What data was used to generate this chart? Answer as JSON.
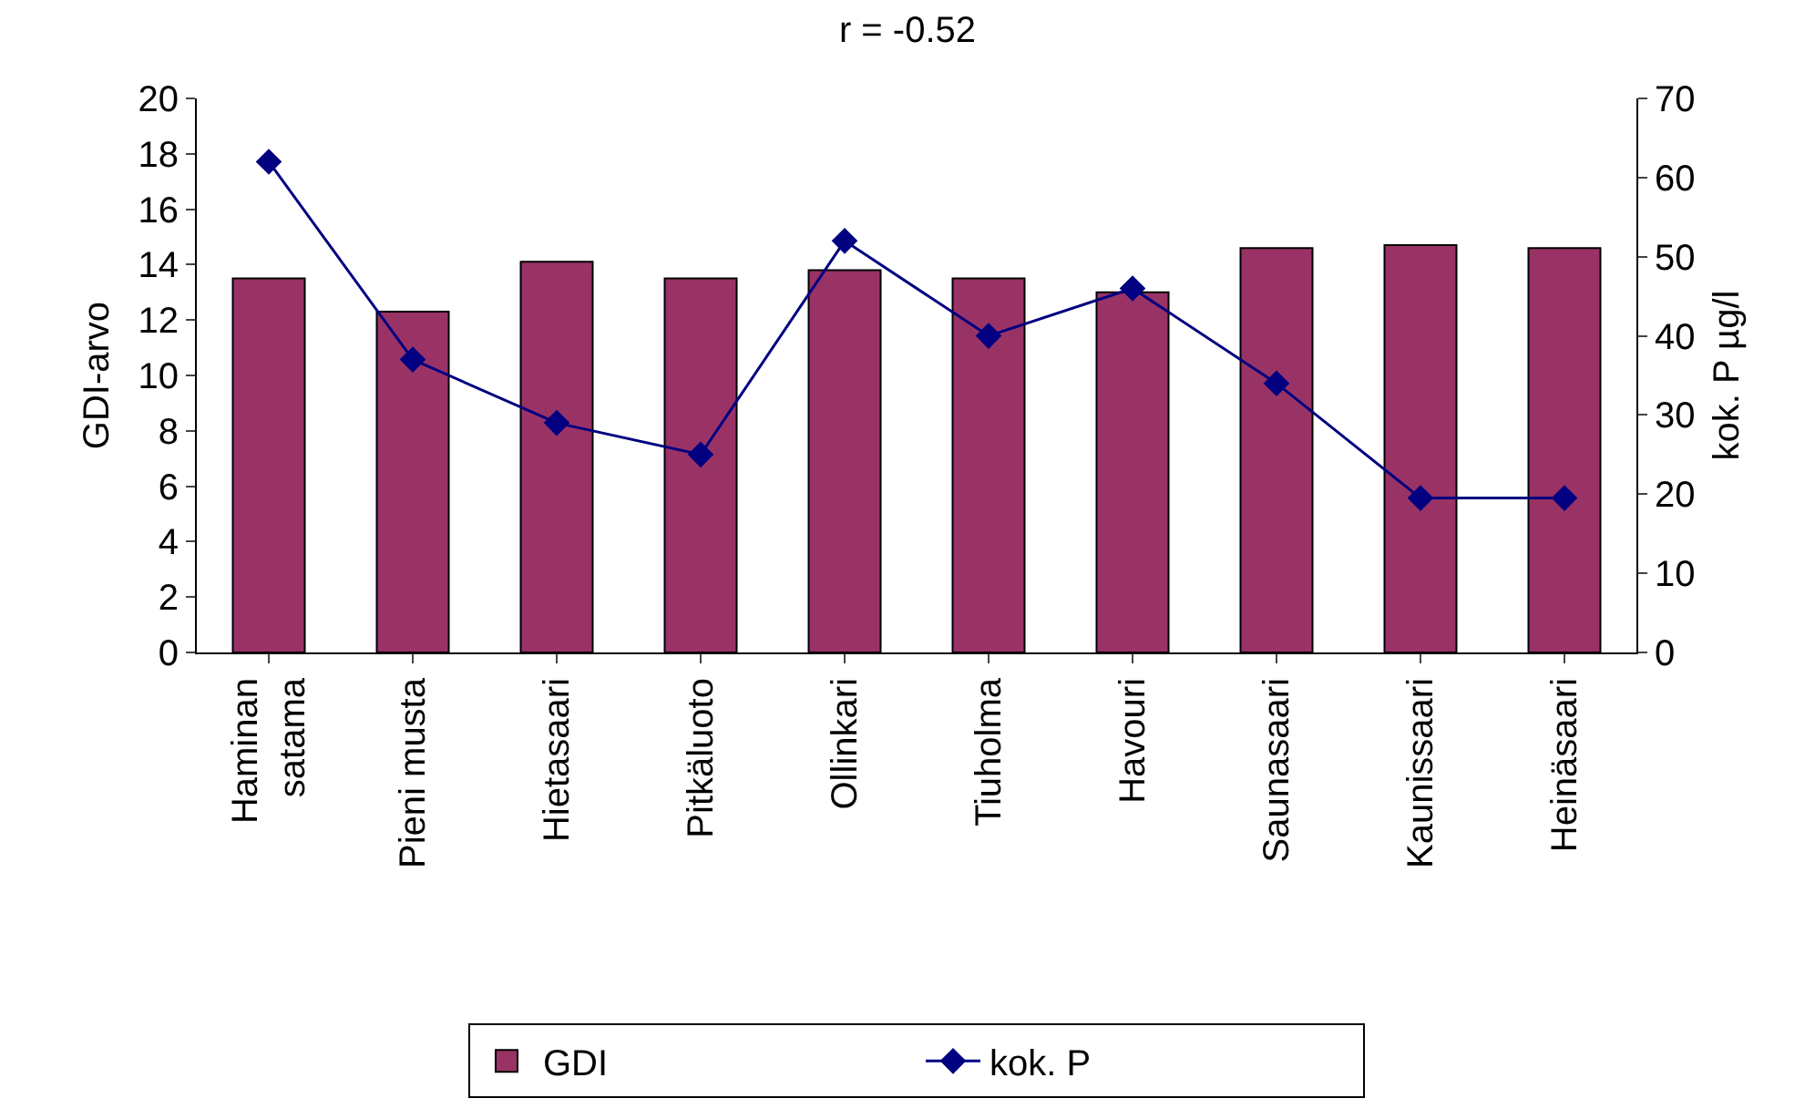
{
  "chart_data": {
    "type": "bar",
    "title": "r = -0.52",
    "ylabel": "GDI-arvo",
    "y2label": "kok. P µg/l",
    "categories": [
      "Haminan\nsatama",
      "Pieni musta",
      "Hietasaari",
      "Pitkäluoto",
      "Ollinkari",
      "Tiuholma",
      "Havouri",
      "Saunasaari",
      "Kaunissaari",
      "Heinäsaari"
    ],
    "series": [
      {
        "name": "GDI",
        "color": "#993366",
        "values": [
          13.5,
          12.3,
          14.1,
          13.5,
          13.8,
          13.5,
          13.0,
          14.6,
          14.7,
          14.6
        ]
      },
      {
        "name": "kok. P",
        "type": "line",
        "axis": "y2",
        "color": "#000080",
        "marker": "diamond",
        "values": [
          62,
          37,
          29,
          25,
          52,
          40,
          46,
          34,
          19.5,
          19.5
        ]
      }
    ],
    "ylim": [
      0,
      20
    ],
    "yticks": [
      0,
      2,
      4,
      6,
      8,
      10,
      12,
      14,
      16,
      18,
      20
    ],
    "y2lim": [
      0,
      70
    ],
    "y2ticks": [
      0,
      10,
      20,
      30,
      40,
      50,
      60,
      70
    ],
    "legend": "bottom"
  }
}
